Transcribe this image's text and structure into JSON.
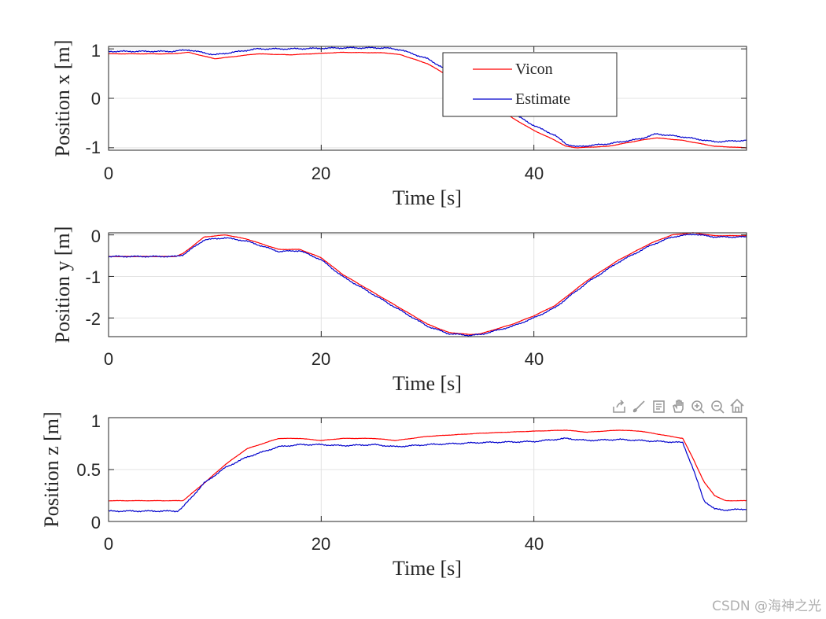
{
  "chart_data": [
    {
      "type": "line",
      "ylabel": "Position x [m]",
      "xlabel": "Time [s]",
      "xlim": [
        0,
        60
      ],
      "ylim": [
        -1.05,
        1.05
      ],
      "xticks": [
        0,
        20,
        40
      ],
      "yticks": [
        1,
        0,
        -1
      ],
      "xtick_labels": [
        "0",
        "20",
        "40"
      ],
      "ytick_labels": [
        "1",
        "0",
        "-1"
      ],
      "grid": true,
      "legend": {
        "location": "top-right",
        "entries": [
          "Vicon",
          "Estimate"
        ]
      },
      "series": [
        {
          "name": "Vicon",
          "color": "#ff0000",
          "x": [
            0,
            6,
            7.5,
            10,
            14,
            17,
            22,
            26,
            27.5,
            30,
            32,
            34,
            36,
            38,
            40,
            42,
            43,
            44,
            47,
            50,
            51.5,
            54,
            57,
            60
          ],
          "y": [
            0.9,
            0.9,
            0.93,
            0.8,
            0.9,
            0.88,
            0.93,
            0.92,
            0.88,
            0.7,
            0.45,
            0.2,
            -0.1,
            -0.4,
            -0.65,
            -0.85,
            -0.97,
            -1.0,
            -0.97,
            -0.85,
            -0.8,
            -0.85,
            -0.97,
            -1.0
          ]
        },
        {
          "name": "Estimate",
          "color": "#0000cc",
          "x": [
            0,
            6,
            7.5,
            10,
            14,
            17,
            22,
            26,
            27.5,
            30,
            32,
            34,
            36,
            38,
            40,
            42,
            43,
            44,
            47,
            50,
            51.5,
            54,
            57,
            60
          ],
          "y": [
            0.95,
            0.95,
            0.98,
            0.88,
            1.0,
            1.0,
            1.02,
            1.02,
            0.98,
            0.8,
            0.55,
            0.28,
            0.0,
            -0.3,
            -0.55,
            -0.75,
            -0.92,
            -0.98,
            -0.92,
            -0.82,
            -0.72,
            -0.78,
            -0.88,
            -0.85
          ]
        }
      ]
    },
    {
      "type": "line",
      "ylabel": "Position y [m]",
      "xlabel": "Time [s]",
      "xlim": [
        0,
        60
      ],
      "ylim": [
        -2.45,
        0.05
      ],
      "xticks": [
        0,
        20,
        40
      ],
      "yticks": [
        0,
        -1,
        -2
      ],
      "xtick_labels": [
        "0",
        "20",
        "40"
      ],
      "ytick_labels": [
        "0",
        "-1",
        "-2"
      ],
      "grid": true,
      "series": [
        {
          "name": "Vicon",
          "color": "#ff0000",
          "x": [
            0,
            6.3,
            7,
            9,
            11,
            13,
            16,
            18,
            20,
            22,
            25,
            28,
            30,
            32,
            34,
            35,
            38,
            40,
            42,
            45,
            48,
            51,
            53,
            55,
            57,
            60
          ],
          "y": [
            -0.52,
            -0.52,
            -0.45,
            -0.05,
            0.0,
            -0.1,
            -0.35,
            -0.35,
            -0.55,
            -0.95,
            -1.4,
            -1.85,
            -2.15,
            -2.35,
            -2.4,
            -2.38,
            -2.15,
            -1.95,
            -1.7,
            -1.1,
            -0.6,
            -0.2,
            0.0,
            0.05,
            -0.02,
            -0.02
          ]
        },
        {
          "name": "Estimate",
          "color": "#0000cc",
          "x": [
            0,
            6.3,
            7,
            9,
            11,
            13,
            16,
            18,
            20,
            22,
            25,
            28,
            30,
            32,
            34,
            35,
            38,
            40,
            42,
            45,
            48,
            51,
            53,
            55,
            57,
            60
          ],
          "y": [
            -0.52,
            -0.52,
            -0.48,
            -0.12,
            -0.07,
            -0.15,
            -0.4,
            -0.38,
            -0.6,
            -1.0,
            -1.45,
            -1.9,
            -2.2,
            -2.38,
            -2.42,
            -2.4,
            -2.2,
            -2.0,
            -1.75,
            -1.15,
            -0.65,
            -0.25,
            -0.05,
            0.02,
            -0.05,
            -0.05
          ]
        }
      ]
    },
    {
      "type": "line",
      "ylabel": "Position z [m]",
      "xlabel": "Time [s]",
      "xlim": [
        0,
        60
      ],
      "ylim": [
        0,
        1
      ],
      "xticks": [
        0,
        20,
        40
      ],
      "yticks": [
        1,
        0.5,
        0
      ],
      "xtick_labels": [
        "0",
        "20",
        "40"
      ],
      "ytick_labels": [
        "1",
        "0.5",
        "0"
      ],
      "grid": true,
      "series": [
        {
          "name": "Vicon",
          "color": "#ff0000",
          "x": [
            0,
            6.5,
            7,
            9,
            11,
            13,
            16,
            18,
            20,
            22,
            25,
            27,
            30,
            35,
            40,
            43,
            45,
            48,
            50,
            54,
            55,
            56,
            57,
            58,
            60
          ],
          "y": [
            0.2,
            0.2,
            0.2,
            0.37,
            0.55,
            0.7,
            0.8,
            0.8,
            0.78,
            0.8,
            0.8,
            0.78,
            0.82,
            0.85,
            0.87,
            0.88,
            0.86,
            0.88,
            0.87,
            0.8,
            0.6,
            0.38,
            0.25,
            0.2,
            0.2
          ]
        },
        {
          "name": "Estimate",
          "color": "#0000cc",
          "x": [
            0,
            6.5,
            7,
            9,
            11,
            13,
            16,
            18,
            20,
            22,
            25,
            27,
            30,
            35,
            40,
            43,
            45,
            48,
            50,
            54,
            55,
            56,
            57,
            58,
            60
          ],
          "y": [
            0.1,
            0.1,
            0.14,
            0.37,
            0.52,
            0.62,
            0.72,
            0.74,
            0.74,
            0.73,
            0.74,
            0.72,
            0.74,
            0.76,
            0.77,
            0.8,
            0.78,
            0.79,
            0.78,
            0.76,
            0.5,
            0.2,
            0.12,
            0.11,
            0.12
          ]
        }
      ]
    }
  ],
  "toolbar": {
    "icons": [
      "export-icon",
      "brush-icon",
      "datatip-icon",
      "pan-icon",
      "zoom-in-icon",
      "zoom-out-icon",
      "home-icon"
    ]
  },
  "watermark": "CSDN @海神之光"
}
